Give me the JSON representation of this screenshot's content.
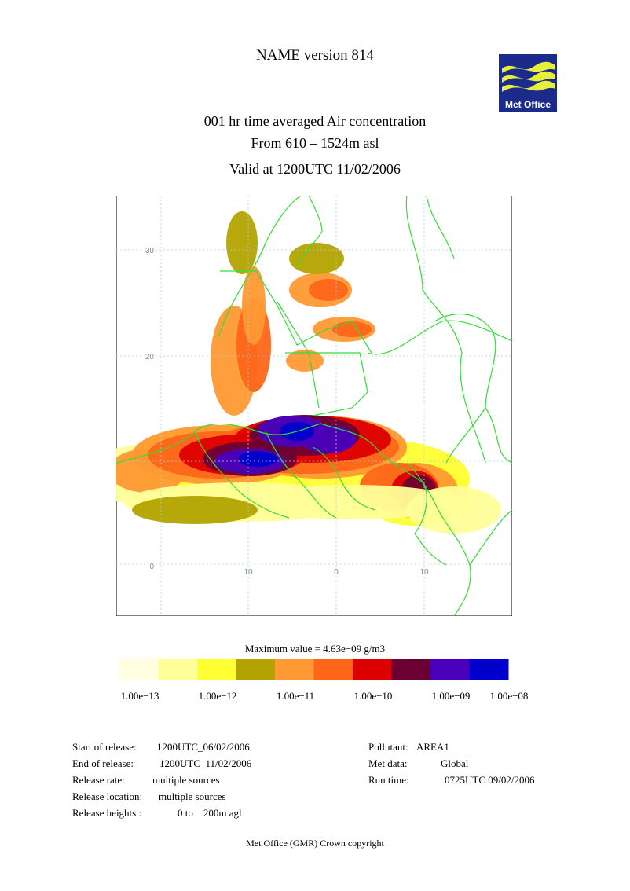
{
  "header": {
    "title": "NAME version 814",
    "subtitle_line1": "001 hr time averaged   Air concentration",
    "subtitle_line2": "From   610 –   1524m asl",
    "valid_at": "Valid at 1200UTC 11/02/2006"
  },
  "logo": {
    "text": "Met Office",
    "bg_color": "#1c2a8c",
    "wave_color": "#e6f03c"
  },
  "map": {
    "lat_labels": [
      "30",
      "20",
      "0"
    ],
    "lon_labels": [
      "10",
      "0",
      "10"
    ],
    "border_color": "#33dd33",
    "grid_color": "#aad0dd"
  },
  "legend": {
    "max_value": "Maximum value = 4.63e−09 g/m3",
    "colors": [
      "#ffffe0",
      "#ffff99",
      "#ffff33",
      "#b2a300",
      "#ff9933",
      "#ff6619",
      "#dd0000",
      "#6b0033",
      "#4a00bb",
      "#0000cc"
    ],
    "tick_labels": [
      "1.00e−13",
      "1.00e−12",
      "1.00e−11",
      "1.00e−10",
      "1.00e−09",
      "1.00e−08"
    ]
  },
  "release_info": {
    "start_label": "Start of release:",
    "start_value": "1200UTC_06/02/2006",
    "end_label": "End of release:",
    "end_value": "1200UTC_11/02/2006",
    "rate_label": "Release rate:",
    "rate_value": "multiple sources",
    "location_label": "Release location:",
    "location_value": "multiple sources",
    "heights_label": "Release heights :",
    "heights_value": "0 to    200m agl"
  },
  "run_info": {
    "pollutant_label": "Pollutant:",
    "pollutant_value": "AREA1",
    "met_label": "Met data:",
    "met_value": "Global",
    "runtime_label": "Run time:",
    "runtime_value": "0725UTC 09/02/2006"
  },
  "footer": {
    "copyright": "Met Office (GMR)  Crown copyright"
  }
}
